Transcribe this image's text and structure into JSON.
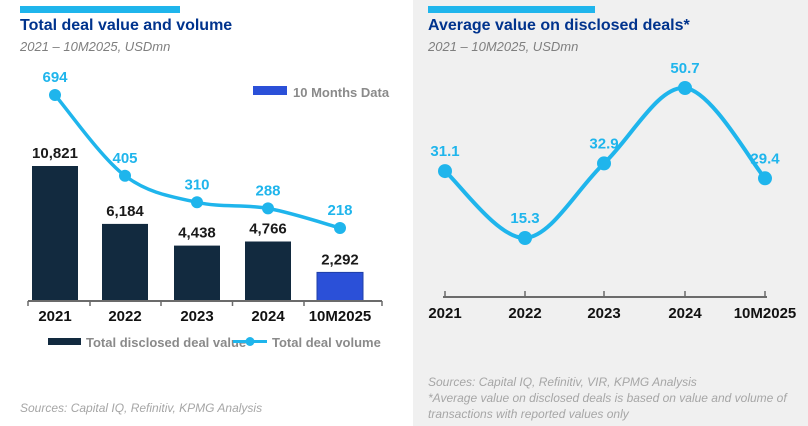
{
  "colors": {
    "navy": "#122A3F",
    "cobalt": "#2B50D8",
    "cobalt_edge": "#1F3FA8",
    "cyan": "#1FB5EC",
    "title_blue": "#00338D",
    "panel_gray": "#F0F0F0",
    "axis_gray": "#6b6b6b",
    "label_black": "#1a1a1a",
    "legend_gray": "#8a8a8a",
    "source_gray": "#A6A6A6"
  },
  "left_chart": {
    "title": "Total deal value and volume",
    "subtitle": "2021 – 10M2025, USDmn",
    "source": "Sources: Capital IQ, Refinitiv, KPMG Analysis"
  },
  "right_chart": {
    "title": "Average value on disclosed deals*",
    "subtitle": "2021 – 10M2025, USDmn",
    "source": "Sources: Capital IQ, Refinitiv, VIR, KPMG Analysis",
    "footnote": "*Average value on disclosed deals is based on value and volume of transactions with reported values only"
  },
  "chart_data": [
    {
      "type": "bar",
      "title": "Total deal value and volume",
      "subtitle": "2021 – 10M2025, USDmn",
      "categories": [
        "2021",
        "2022",
        "2023",
        "2024",
        "10M2025"
      ],
      "series": [
        {
          "name": "Total disclosed deal value",
          "type": "bar",
          "values": [
            10821,
            6184,
            4438,
            4766,
            2292
          ],
          "labels": [
            "10,821",
            "6,184",
            "4,438",
            "4,766",
            "2,292"
          ]
        },
        {
          "name": "Total deal volume",
          "type": "line",
          "values": [
            694,
            405,
            310,
            288,
            218
          ],
          "labels": [
            "694",
            "405",
            "310",
            "288",
            "218"
          ]
        }
      ],
      "highlight_category": "10M2025",
      "highlight_note": "10 Months Data",
      "legend_position": "bottom",
      "grid": false,
      "ylabel": "",
      "xlabel": ""
    },
    {
      "type": "line",
      "title": "Average value on disclosed deals*",
      "subtitle": "2021 – 10M2025, USDmn",
      "categories": [
        "2021",
        "2022",
        "2023",
        "2024",
        "10M2025"
      ],
      "values": [
        31.1,
        15.3,
        32.9,
        50.7,
        29.4
      ],
      "labels": [
        "31.1",
        "15.3",
        "32.9",
        "50.7",
        "29.4"
      ],
      "grid": false,
      "legend_position": "none",
      "ylabel": "",
      "xlabel": ""
    }
  ]
}
